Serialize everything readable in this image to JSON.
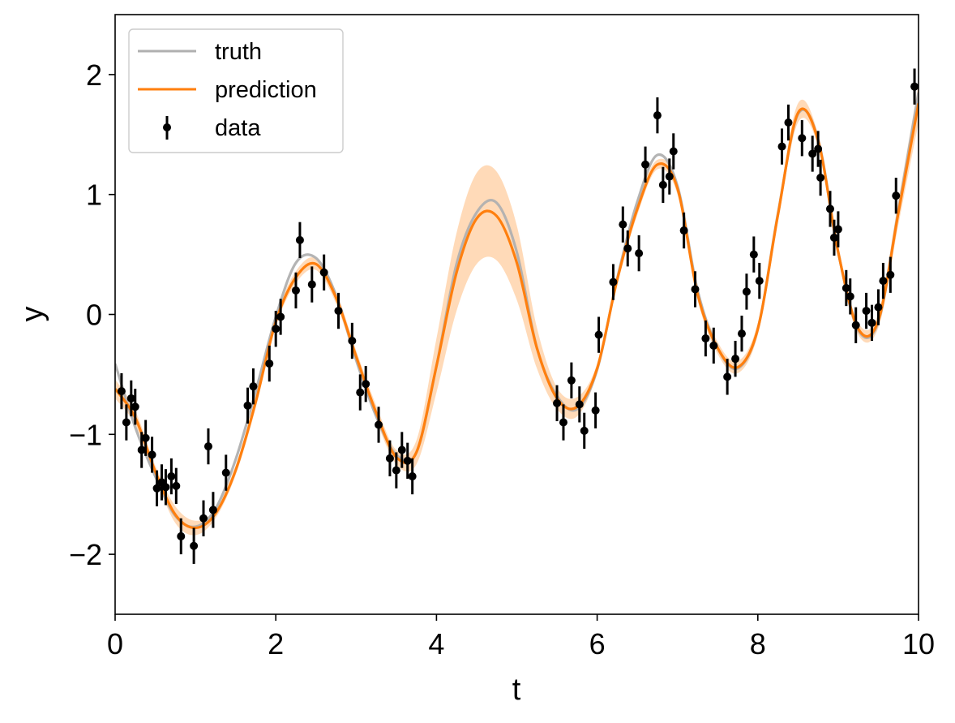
{
  "chart_data": {
    "type": "line",
    "xlabel": "t",
    "ylabel": "y",
    "xlim": [
      0,
      10
    ],
    "ylim": [
      -2.5,
      2.5
    ],
    "x_ticks": [
      0,
      2,
      4,
      6,
      8,
      10
    ],
    "x_tick_labels": [
      "0",
      "2",
      "4",
      "6",
      "8",
      "10"
    ],
    "y_ticks": [
      -2,
      -1,
      0,
      1,
      2
    ],
    "y_tick_labels": [
      "−2",
      "−1",
      "0",
      "1",
      "2"
    ],
    "grid": false,
    "legend_position": "top-left",
    "legend": [
      "truth",
      "prediction",
      "data"
    ],
    "colors": {
      "truth": "#b0b0b0",
      "prediction": "#ff7f0e",
      "band": "#ffd3ab",
      "data": "#000000"
    },
    "series": [
      {
        "name": "truth",
        "x": [
          0,
          0.25,
          0.5,
          0.75,
          1.0,
          1.25,
          1.5,
          1.75,
          2.0,
          2.25,
          2.5,
          2.75,
          3.0,
          3.25,
          3.5,
          3.75,
          4.0,
          4.25,
          4.5,
          4.75,
          5.0,
          5.25,
          5.5,
          5.75,
          6.0,
          6.25,
          6.5,
          6.75,
          7.0,
          7.25,
          7.5,
          7.75,
          8.0,
          8.25,
          8.5,
          8.75,
          9.0,
          9.25,
          9.5,
          9.75,
          10.0
        ],
        "values": [
          -0.41,
          -0.94,
          -1.35,
          -1.68,
          -1.77,
          -1.62,
          -1.21,
          -0.64,
          -0.02,
          0.43,
          0.47,
          0.16,
          -0.38,
          -0.85,
          -1.17,
          -1.15,
          -0.43,
          0.42,
          0.85,
          0.93,
          0.52,
          -0.28,
          -0.68,
          -0.79,
          -0.46,
          0.3,
          0.94,
          1.33,
          1.07,
          0.2,
          -0.28,
          -0.45,
          -0.12,
          0.84,
          1.67,
          1.46,
          0.52,
          -0.13,
          -0.06,
          0.87,
          1.85
        ]
      },
      {
        "name": "prediction",
        "x": [
          0,
          0.25,
          0.5,
          0.75,
          1.0,
          1.25,
          1.5,
          1.75,
          2.0,
          2.25,
          2.5,
          2.75,
          3.0,
          3.25,
          3.5,
          3.75,
          4.0,
          4.25,
          4.5,
          4.75,
          5.0,
          5.25,
          5.5,
          5.75,
          6.0,
          6.25,
          6.5,
          6.75,
          7.0,
          7.25,
          7.5,
          7.75,
          8.0,
          8.25,
          8.5,
          8.75,
          9.0,
          9.25,
          9.5,
          9.75,
          10.0
        ],
        "values": [
          -0.62,
          -0.86,
          -1.31,
          -1.67,
          -1.78,
          -1.66,
          -1.3,
          -0.73,
          -0.06,
          0.31,
          0.42,
          0.14,
          -0.35,
          -0.82,
          -1.19,
          -1.15,
          -0.43,
          0.35,
          0.8,
          0.82,
          0.43,
          -0.28,
          -0.7,
          -0.77,
          -0.45,
          0.29,
          0.88,
          1.25,
          1.05,
          0.17,
          -0.28,
          -0.44,
          -0.12,
          0.83,
          1.68,
          1.45,
          0.52,
          -0.12,
          -0.05,
          0.85,
          1.76
        ],
        "lower": [
          -0.7,
          -0.92,
          -1.36,
          -1.74,
          -1.84,
          -1.7,
          -1.34,
          -0.78,
          -0.1,
          0.26,
          0.37,
          0.09,
          -0.4,
          -0.88,
          -1.25,
          -1.25,
          -0.65,
          0.03,
          0.42,
          0.45,
          0.12,
          -0.45,
          -0.79,
          -0.85,
          -0.49,
          0.25,
          0.83,
          1.21,
          1.0,
          0.12,
          -0.33,
          -0.49,
          -0.17,
          0.77,
          1.6,
          1.4,
          0.47,
          -0.17,
          -0.11,
          0.75,
          1.6
        ],
        "upper": [
          -0.54,
          -0.8,
          -1.26,
          -1.6,
          -1.72,
          -1.62,
          -1.26,
          -0.68,
          -0.02,
          0.36,
          0.47,
          0.19,
          -0.3,
          -0.76,
          -1.13,
          -1.05,
          -0.2,
          0.68,
          1.18,
          1.19,
          0.74,
          -0.11,
          -0.61,
          -0.69,
          -0.41,
          0.33,
          0.93,
          1.29,
          1.1,
          0.22,
          -0.23,
          -0.39,
          -0.07,
          0.89,
          1.76,
          1.5,
          0.57,
          -0.07,
          0.01,
          0.95,
          1.92
        ]
      }
    ],
    "data": {
      "name": "data",
      "x": [
        0.08,
        0.14,
        0.2,
        0.25,
        0.33,
        0.38,
        0.46,
        0.52,
        0.58,
        0.63,
        0.7,
        0.76,
        0.82,
        0.98,
        1.1,
        1.16,
        1.22,
        1.38,
        1.65,
        1.72,
        1.92,
        2.0,
        2.06,
        2.25,
        2.3,
        2.45,
        2.6,
        2.78,
        2.95,
        3.05,
        3.12,
        3.28,
        3.42,
        3.5,
        3.57,
        3.64,
        3.7,
        5.5,
        5.58,
        5.68,
        5.78,
        5.84,
        5.98,
        6.02,
        6.2,
        6.32,
        6.38,
        6.52,
        6.6,
        6.75,
        6.82,
        6.9,
        6.95,
        7.08,
        7.22,
        7.35,
        7.45,
        7.62,
        7.72,
        7.8,
        7.86,
        7.95,
        8.02,
        8.3,
        8.38,
        8.55,
        8.68,
        8.75,
        8.78,
        8.9,
        8.95,
        9.0,
        9.1,
        9.15,
        9.22,
        9.35,
        9.42,
        9.5,
        9.56,
        9.65,
        9.72,
        9.95
      ],
      "values": [
        -0.64,
        -0.9,
        -0.7,
        -0.77,
        -1.13,
        -1.03,
        -1.17,
        -1.45,
        -1.4,
        -1.44,
        -1.35,
        -1.43,
        -1.85,
        -1.93,
        -1.7,
        -1.1,
        -1.63,
        -1.32,
        -0.76,
        -0.6,
        -0.41,
        -0.12,
        -0.02,
        0.2,
        0.62,
        0.25,
        0.35,
        0.03,
        -0.22,
        -0.65,
        -0.58,
        -0.92,
        -1.2,
        -1.3,
        -1.13,
        -1.22,
        -1.35,
        -0.74,
        -0.9,
        -0.55,
        -0.75,
        -0.97,
        -0.8,
        -0.17,
        0.27,
        0.75,
        0.55,
        0.51,
        1.25,
        1.66,
        1.08,
        1.15,
        1.36,
        0.7,
        0.21,
        -0.2,
        -0.26,
        -0.52,
        -0.37,
        -0.16,
        0.19,
        0.5,
        0.28,
        1.4,
        1.6,
        1.47,
        1.34,
        1.38,
        1.14,
        0.88,
        0.64,
        0.71,
        0.22,
        0.15,
        -0.09,
        0.03,
        -0.07,
        0.06,
        0.28,
        0.33,
        0.99,
        1.9
      ],
      "error": 0.15
    }
  }
}
